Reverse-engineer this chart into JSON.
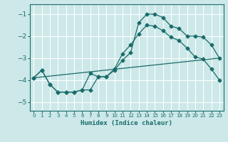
{
  "xlabel": "Humidex (Indice chaleur)",
  "ylabel": "",
  "bg_color": "#cce8e8",
  "grid_color": "#ffffff",
  "line_color": "#1a6b6b",
  "xlim": [
    -0.5,
    23.5
  ],
  "ylim": [
    -5.4,
    -0.55
  ],
  "yticks": [
    -5,
    -4,
    -3,
    -2,
    -1
  ],
  "xticks": [
    0,
    1,
    2,
    3,
    4,
    5,
    6,
    7,
    8,
    9,
    10,
    11,
    12,
    13,
    14,
    15,
    16,
    17,
    18,
    19,
    20,
    21,
    22,
    23
  ],
  "line1_x": [
    0,
    1,
    2,
    3,
    4,
    5,
    6,
    7,
    8,
    9,
    10,
    11,
    12,
    13,
    14,
    15,
    16,
    17,
    18,
    19,
    20,
    21,
    22,
    23
  ],
  "line1_y": [
    -3.9,
    -3.55,
    -4.2,
    -4.55,
    -4.55,
    -4.55,
    -4.45,
    -4.45,
    -3.85,
    -3.85,
    -3.55,
    -3.1,
    -2.75,
    -1.4,
    -1.0,
    -1.0,
    -1.15,
    -1.55,
    -1.65,
    -2.0,
    -2.0,
    -2.05,
    -2.4,
    -3.0
  ],
  "line2_x": [
    0,
    1,
    2,
    3,
    4,
    5,
    6,
    7,
    8,
    9,
    10,
    11,
    12,
    13,
    14,
    15,
    16,
    17,
    18,
    19,
    20,
    21,
    22,
    23
  ],
  "line2_y": [
    -3.9,
    -3.55,
    -4.2,
    -4.55,
    -4.55,
    -4.55,
    -4.45,
    -3.7,
    -3.85,
    -3.85,
    -3.5,
    -2.8,
    -2.4,
    -1.9,
    -1.5,
    -1.55,
    -1.75,
    -2.05,
    -2.2,
    -2.55,
    -2.95,
    -3.05,
    -3.5,
    -4.0
  ],
  "line3_x": [
    0,
    23
  ],
  "line3_y": [
    -3.9,
    -3.0
  ]
}
